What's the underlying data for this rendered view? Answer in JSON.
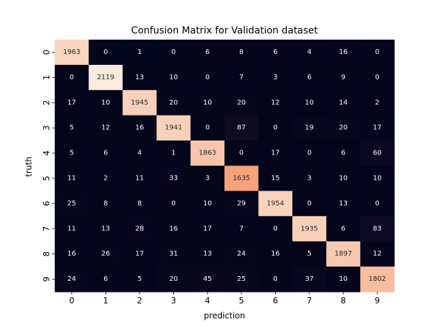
{
  "chart_data": {
    "type": "heatmap",
    "title": "Confusion Matrix for Validation dataset",
    "xlabel": "prediction",
    "ylabel": "truth",
    "x_categories": [
      "0",
      "1",
      "2",
      "3",
      "4",
      "5",
      "6",
      "7",
      "8",
      "9"
    ],
    "y_categories": [
      "0",
      "1",
      "2",
      "3",
      "4",
      "5",
      "6",
      "7",
      "8",
      "9"
    ],
    "values": [
      [
        1963,
        0,
        1,
        0,
        6,
        8,
        6,
        4,
        16,
        0
      ],
      [
        0,
        2119,
        13,
        10,
        0,
        7,
        3,
        6,
        9,
        0
      ],
      [
        17,
        10,
        1945,
        20,
        10,
        20,
        12,
        10,
        14,
        2
      ],
      [
        5,
        12,
        16,
        1941,
        0,
        87,
        0,
        19,
        20,
        17
      ],
      [
        5,
        6,
        4,
        1,
        1863,
        0,
        17,
        0,
        6,
        60
      ],
      [
        11,
        2,
        11,
        33,
        3,
        1635,
        15,
        3,
        10,
        10
      ],
      [
        25,
        8,
        8,
        0,
        10,
        29,
        1954,
        0,
        13,
        0
      ],
      [
        11,
        13,
        28,
        16,
        17,
        7,
        0,
        1935,
        6,
        83
      ],
      [
        16,
        26,
        17,
        31,
        13,
        24,
        16,
        5,
        1897,
        12
      ],
      [
        24,
        6,
        5,
        20,
        45,
        25,
        0,
        37,
        10,
        1802
      ]
    ],
    "grid": false,
    "legend": "none"
  },
  "colors": {
    "low": "#03051a",
    "mid_low": "#4c1d4b",
    "mid": "#cb1b4f",
    "mid_high": "#f69c73",
    "high": "#faebdd",
    "text_on_dark": "#ffffff",
    "text_on_light": "#262626"
  }
}
